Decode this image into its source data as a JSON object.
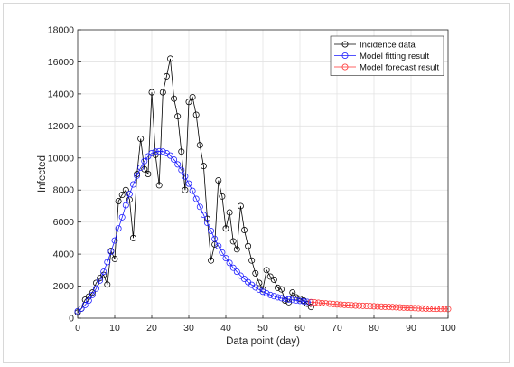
{
  "chart_data": {
    "type": "line",
    "xlabel": "Data point (day)",
    "ylabel": "Infected",
    "xlim": [
      0,
      100
    ],
    "ylim": [
      0,
      18000
    ],
    "xticks": [
      0,
      10,
      20,
      30,
      40,
      50,
      60,
      70,
      80,
      90,
      100
    ],
    "yticks": [
      0,
      2000,
      4000,
      6000,
      8000,
      10000,
      12000,
      14000,
      16000,
      18000
    ],
    "grid": true,
    "legend_position": "top-right",
    "series": [
      {
        "name": "Incidence data",
        "color": "#000000",
        "marker": "circle",
        "line": true,
        "x": [
          0,
          1,
          2,
          3,
          4,
          5,
          6,
          7,
          8,
          9,
          10,
          11,
          12,
          13,
          14,
          15,
          16,
          17,
          18,
          19,
          20,
          21,
          22,
          23,
          24,
          25,
          26,
          27,
          28,
          29,
          30,
          31,
          32,
          33,
          34,
          35,
          36,
          37,
          38,
          39,
          40,
          41,
          42,
          43,
          44,
          45,
          46,
          47,
          48,
          49,
          50,
          51,
          52,
          53,
          54,
          55,
          56,
          57,
          58,
          59,
          60,
          61,
          62,
          63
        ],
        "y": [
          350,
          600,
          1150,
          1350,
          1600,
          2200,
          2500,
          2700,
          2100,
          4200,
          3700,
          7300,
          7700,
          8000,
          7400,
          5000,
          9000,
          11200,
          9300,
          9000,
          14100,
          10200,
          8300,
          14100,
          15100,
          16200,
          13700,
          12600,
          10400,
          8000,
          13500,
          13800,
          12700,
          10800,
          9500,
          6200,
          3600,
          4600,
          8600,
          7600,
          5600,
          6600,
          4800,
          4300,
          7000,
          5500,
          4500,
          3600,
          2800,
          2200,
          1800,
          3000,
          2600,
          2400,
          1900,
          1800,
          1100,
          1000,
          1600,
          1300,
          1200,
          1100,
          900,
          700
        ]
      },
      {
        "name": "Model fitting result",
        "color": "#1a1aff",
        "marker": "circle",
        "line": true,
        "x": [
          0,
          1,
          2,
          3,
          4,
          5,
          6,
          7,
          8,
          9,
          10,
          11,
          12,
          13,
          14,
          15,
          16,
          17,
          18,
          19,
          20,
          21,
          22,
          23,
          24,
          25,
          26,
          27,
          28,
          29,
          30,
          31,
          32,
          33,
          34,
          35,
          36,
          37,
          38,
          39,
          40,
          41,
          42,
          43,
          44,
          45,
          46,
          47,
          48,
          49,
          50,
          51,
          52,
          53,
          54,
          55,
          56,
          57,
          58,
          59,
          60,
          61,
          62,
          63
        ],
        "y": [
          430,
          600,
          820,
          1100,
          1450,
          1850,
          2350,
          2900,
          3500,
          4150,
          4850,
          5600,
          6300,
          7050,
          7750,
          8350,
          8900,
          9400,
          9800,
          10100,
          10300,
          10400,
          10420,
          10400,
          10300,
          10150,
          9900,
          9600,
          9250,
          8850,
          8400,
          7950,
          7450,
          6950,
          6450,
          5950,
          5450,
          4950,
          4500,
          4100,
          3750,
          3450,
          3150,
          2900,
          2650,
          2450,
          2250,
          2080,
          1920,
          1780,
          1650,
          1550,
          1450,
          1370,
          1300,
          1250,
          1210,
          1170,
          1140,
          1110,
          1080,
          1050,
          1020,
          990
        ]
      },
      {
        "name": "Model forecast result",
        "color": "#ff3030",
        "marker": "circle",
        "line": true,
        "x": [
          63,
          64,
          65,
          66,
          67,
          68,
          69,
          70,
          71,
          72,
          73,
          74,
          75,
          76,
          77,
          78,
          79,
          80,
          81,
          82,
          83,
          84,
          85,
          86,
          87,
          88,
          89,
          90,
          91,
          92,
          93,
          94,
          95,
          96,
          97,
          98,
          99,
          100
        ],
        "y": [
          1000,
          980,
          960,
          940,
          920,
          900,
          880,
          860,
          845,
          830,
          815,
          800,
          790,
          780,
          770,
          760,
          750,
          740,
          730,
          720,
          710,
          700,
          690,
          680,
          670,
          660,
          650,
          640,
          630,
          620,
          610,
          600,
          595,
          590,
          585,
          580,
          575,
          570
        ]
      }
    ]
  }
}
